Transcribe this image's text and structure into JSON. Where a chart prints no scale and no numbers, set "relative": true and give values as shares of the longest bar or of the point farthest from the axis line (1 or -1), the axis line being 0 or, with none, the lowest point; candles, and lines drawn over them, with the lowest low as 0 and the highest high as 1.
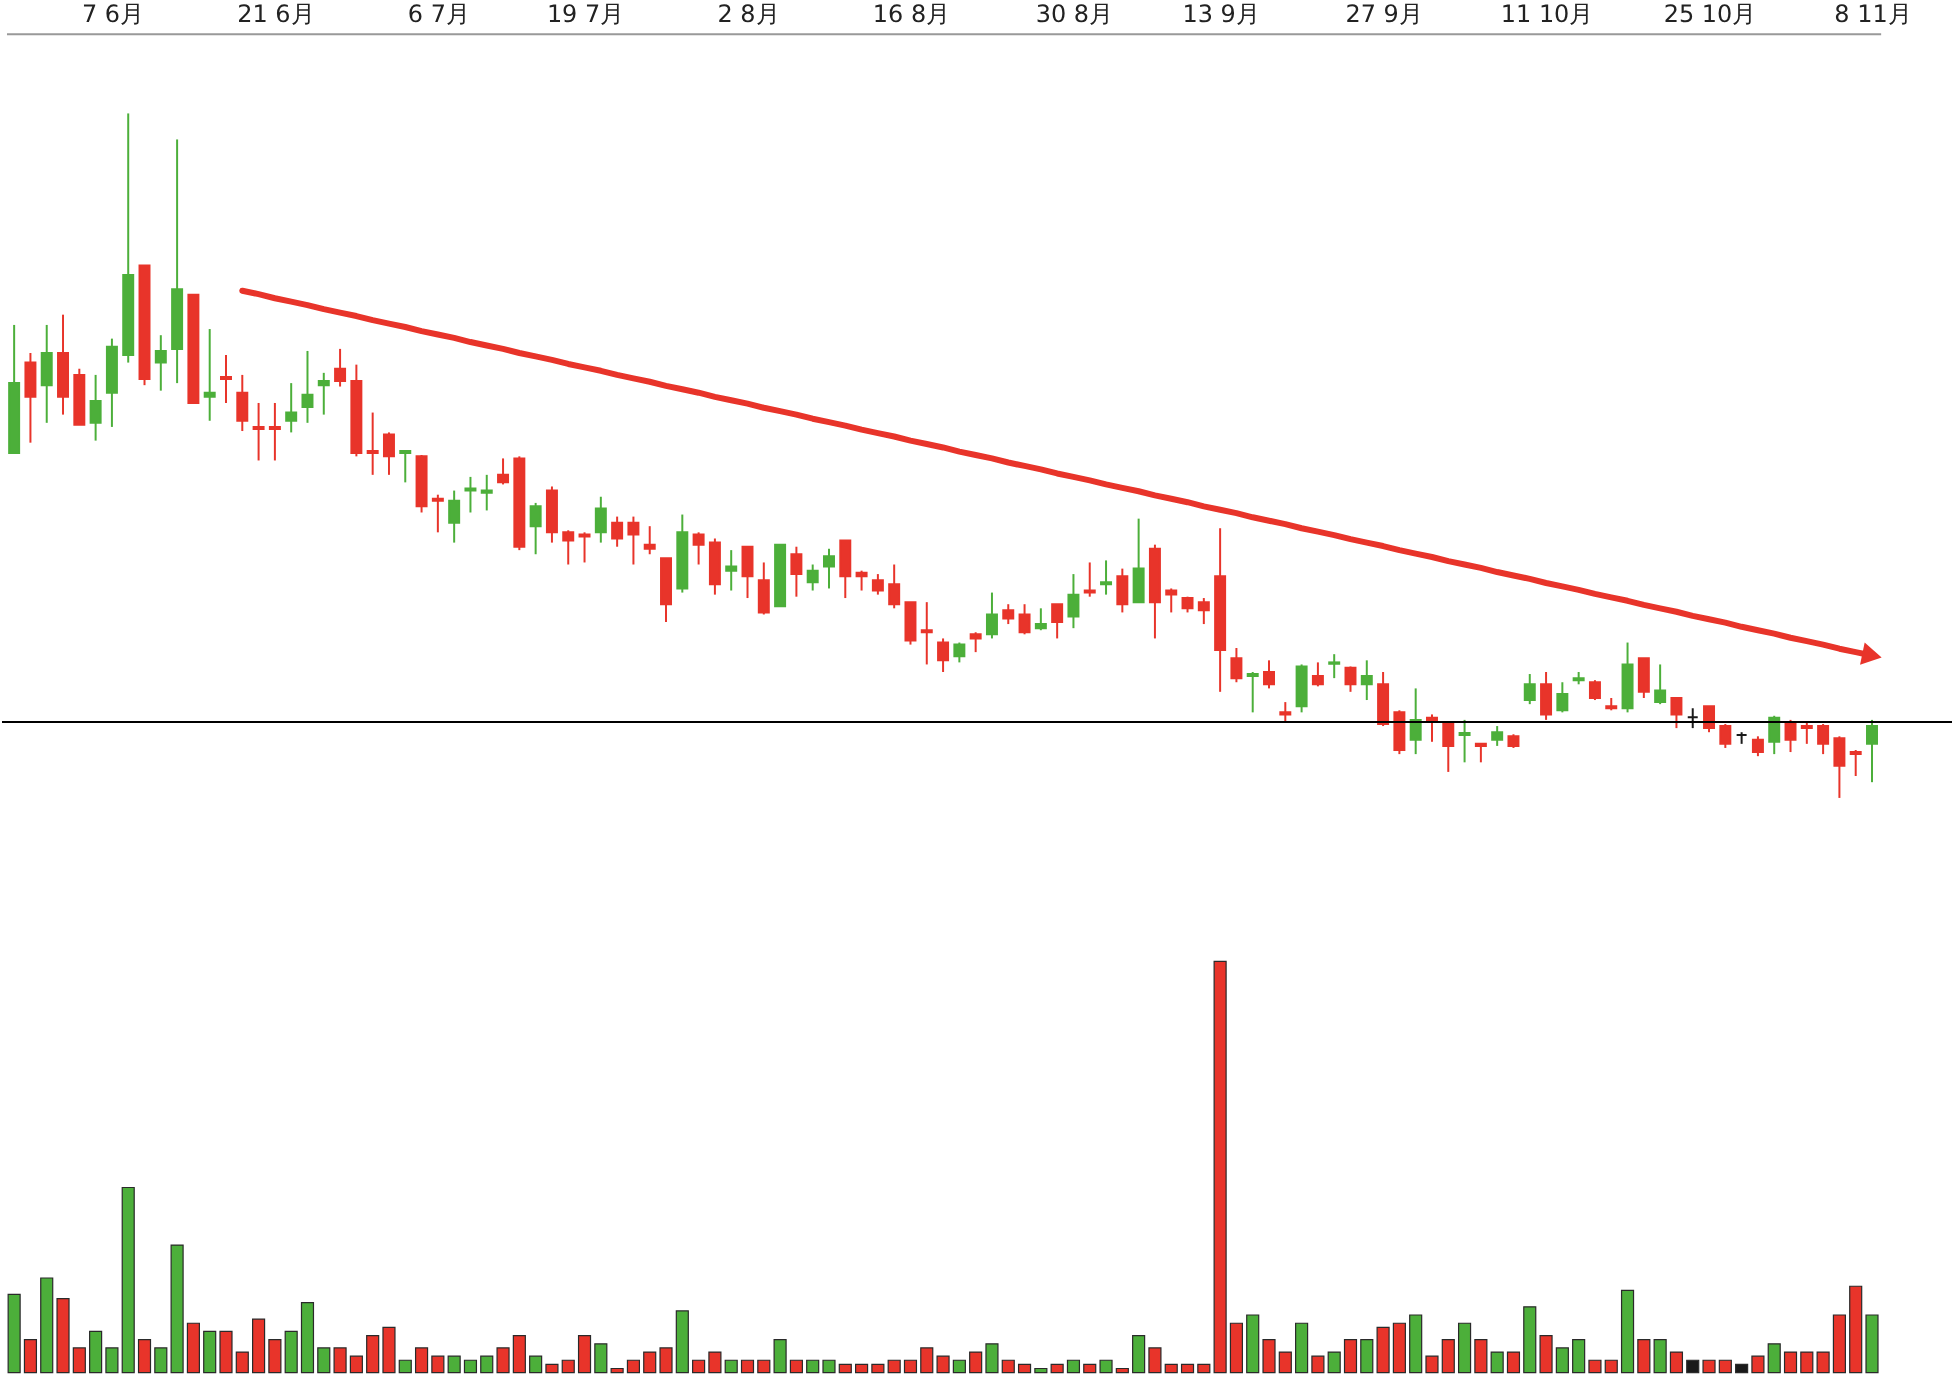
{
  "chart_data": [
    {
      "type": "candlestick",
      "relative": true,
      "grid": false,
      "tick_labels": "x",
      "categories": [
        null,
        null,
        null,
        null,
        null,
        null,
        "7 6月",
        null,
        null,
        null,
        null,
        null,
        null,
        null,
        null,
        null,
        "21 6月",
        null,
        null,
        null,
        null,
        null,
        null,
        null,
        null,
        null,
        "6 7月",
        null,
        null,
        null,
        null,
        null,
        null,
        null,
        null,
        "19 7月",
        null,
        null,
        null,
        null,
        null,
        null,
        null,
        null,
        null,
        "2 8月",
        null,
        null,
        null,
        null,
        null,
        null,
        null,
        null,
        null,
        "16 8月",
        null,
        null,
        null,
        null,
        null,
        null,
        null,
        null,
        null,
        "30 8月",
        null,
        null,
        null,
        null,
        null,
        null,
        null,
        null,
        "13 9月",
        null,
        null,
        null,
        null,
        null,
        null,
        null,
        null,
        null,
        "27 9月",
        null,
        null,
        null,
        null,
        null,
        null,
        null,
        null,
        null,
        "11 10月",
        null,
        null,
        null,
        null,
        null,
        null,
        null,
        null,
        null,
        "25 10月",
        null,
        null,
        null,
        null,
        null,
        null,
        null,
        null,
        null,
        "8 11月"
      ],
      "ohlc": [
        [
          0.504,
          0.691,
          0.504,
          0.606
        ],
        [
          0.636,
          0.65,
          0.519,
          0.586
        ],
        [
          0.603,
          0.691,
          0.548,
          0.65
        ],
        [
          0.65,
          0.706,
          0.56,
          0.586
        ],
        [
          0.618,
          0.627,
          0.545,
          0.545
        ],
        [
          0.548,
          0.618,
          0.522,
          0.58
        ],
        [
          0.592,
          0.671,
          0.542,
          0.659
        ],
        [
          0.647,
          1.0,
          0.636,
          0.764
        ],
        [
          0.778,
          0.778,
          0.603,
          0.612
        ],
        [
          0.636,
          0.676,
          0.595,
          0.653
        ],
        [
          0.656,
          0.962,
          0.606,
          0.743
        ],
        [
          0.735,
          0.735,
          0.577,
          0.577
        ],
        [
          0.586,
          0.685,
          0.551,
          0.592
        ],
        [
          0.615,
          0.647,
          0.577,
          0.612
        ],
        [
          0.592,
          0.618,
          0.536,
          0.551
        ],
        [
          0.542,
          0.577,
          0.493,
          0.539
        ],
        [
          0.542,
          0.577,
          0.493,
          0.539
        ],
        [
          0.551,
          0.606,
          0.534,
          0.563
        ],
        [
          0.571,
          0.653,
          0.548,
          0.589
        ],
        [
          0.603,
          0.621,
          0.56,
          0.609
        ],
        [
          0.627,
          0.656,
          0.601,
          0.609
        ],
        [
          0.609,
          0.633,
          0.499,
          0.504
        ],
        [
          0.507,
          0.563,
          0.472,
          0.504
        ],
        [
          0.531,
          0.534,
          0.472,
          0.499
        ],
        [
          0.504,
          0.507,
          0.461,
          0.507
        ],
        [
          0.499,
          0.501,
          0.417,
          0.426
        ],
        [
          0.437,
          0.443,
          0.388,
          0.434
        ],
        [
          0.402,
          0.449,
          0.373,
          0.434
        ],
        [
          0.449,
          0.469,
          0.417,
          0.452
        ],
        [
          0.446,
          0.472,
          0.42,
          0.449
        ],
        [
          0.472,
          0.496,
          0.458,
          0.461
        ],
        [
          0.496,
          0.499,
          0.362,
          0.367
        ],
        [
          0.397,
          0.431,
          0.356,
          0.426
        ],
        [
          0.449,
          0.455,
          0.373,
          0.388
        ],
        [
          0.388,
          0.391,
          0.341,
          0.376
        ],
        [
          0.385,
          0.388,
          0.344,
          0.382
        ],
        [
          0.388,
          0.44,
          0.373,
          0.423
        ],
        [
          0.402,
          0.411,
          0.367,
          0.379
        ],
        [
          0.402,
          0.411,
          0.341,
          0.385
        ],
        [
          0.37,
          0.397,
          0.356,
          0.364
        ],
        [
          0.35,
          0.35,
          0.257,
          0.283
        ],
        [
          0.306,
          0.414,
          0.3,
          0.388
        ],
        [
          0.385,
          0.388,
          0.341,
          0.37
        ],
        [
          0.373,
          0.379,
          0.297,
          0.312
        ],
        [
          0.332,
          0.362,
          0.303,
          0.338
        ],
        [
          0.367,
          0.367,
          0.292,
          0.324
        ],
        [
          0.318,
          0.344,
          0.268,
          0.271
        ],
        [
          0.28,
          0.37,
          0.28,
          0.37
        ],
        [
          0.356,
          0.367,
          0.294,
          0.327
        ],
        [
          0.315,
          0.341,
          0.303,
          0.332
        ],
        [
          0.338,
          0.364,
          0.306,
          0.353
        ],
        [
          0.376,
          0.376,
          0.292,
          0.324
        ],
        [
          0.329,
          0.332,
          0.303,
          0.324
        ],
        [
          0.318,
          0.327,
          0.297,
          0.303
        ],
        [
          0.312,
          0.341,
          0.277,
          0.283
        ],
        [
          0.286,
          0.286,
          0.224,
          0.23
        ],
        [
          0.245,
          0.286,
          0.195,
          0.242
        ],
        [
          0.227,
          0.233,
          0.184,
          0.201
        ],
        [
          0.207,
          0.227,
          0.198,
          0.224
        ],
        [
          0.239,
          0.242,
          0.213,
          0.233
        ],
        [
          0.239,
          0.3,
          0.233,
          0.268
        ],
        [
          0.274,
          0.283,
          0.254,
          0.262
        ],
        [
          0.268,
          0.283,
          0.239,
          0.242
        ],
        [
          0.248,
          0.277,
          0.245,
          0.254
        ],
        [
          0.283,
          0.283,
          0.233,
          0.257
        ],
        [
          0.265,
          0.327,
          0.248,
          0.297
        ],
        [
          0.303,
          0.344,
          0.294,
          0.3
        ],
        [
          0.312,
          0.347,
          0.297,
          0.315
        ],
        [
          0.324,
          0.335,
          0.271,
          0.283
        ],
        [
          0.286,
          0.408,
          0.286,
          0.335
        ],
        [
          0.364,
          0.37,
          0.233,
          0.286
        ],
        [
          0.303,
          0.306,
          0.271,
          0.297
        ],
        [
          0.292,
          0.294,
          0.271,
          0.277
        ],
        [
          0.286,
          0.292,
          0.254,
          0.274
        ],
        [
          0.324,
          0.394,
          0.155,
          0.216
        ],
        [
          0.204,
          0.219,
          0.169,
          0.175
        ],
        [
          0.178,
          0.184,
          0.125,
          0.181
        ],
        [
          0.184,
          0.201,
          0.16,
          0.166
        ],
        [
          0.125,
          0.14,
          0.111,
          0.122
        ],
        [
          0.134,
          0.195,
          0.125,
          0.192
        ],
        [
          0.178,
          0.198,
          0.163,
          0.166
        ],
        [
          0.196,
          0.21,
          0.175,
          0.198
        ],
        [
          0.19,
          0.192,
          0.155,
          0.166
        ],
        [
          0.166,
          0.201,
          0.143,
          0.178
        ],
        [
          0.166,
          0.184,
          0.105,
          0.108
        ],
        [
          0.125,
          0.128,
          0.064,
          0.07
        ],
        [
          0.085,
          0.16,
          0.064,
          0.114
        ],
        [
          0.117,
          0.122,
          0.082,
          0.114
        ],
        [
          0.108,
          0.111,
          0.038,
          0.076
        ],
        [
          0.092,
          0.114,
          0.052,
          0.095
        ],
        [
          0.079,
          0.079,
          0.052,
          0.076
        ],
        [
          0.085,
          0.105,
          0.076,
          0.096
        ],
        [
          0.09,
          0.093,
          0.073,
          0.076
        ],
        [
          0.143,
          0.181,
          0.137,
          0.166
        ],
        [
          0.166,
          0.184,
          0.114,
          0.122
        ],
        [
          0.128,
          0.169,
          0.125,
          0.152
        ],
        [
          0.172,
          0.184,
          0.166,
          0.175
        ],
        [
          0.169,
          0.172,
          0.143,
          0.146
        ],
        [
          0.134,
          0.146,
          0.128,
          0.131
        ],
        [
          0.131,
          0.227,
          0.125,
          0.195
        ],
        [
          0.204,
          0.204,
          0.146,
          0.155
        ],
        [
          0.14,
          0.195,
          0.137,
          0.157
        ],
        [
          0.146,
          0.146,
          0.102,
          0.122
        ],
        [
          0.118,
          0.131,
          0.102,
          0.118
        ],
        [
          0.134,
          0.134,
          0.096,
          0.102
        ],
        [
          0.105,
          0.108,
          0.073,
          0.079
        ],
        [
          0.092,
          0.096,
          0.079,
          0.092
        ],
        [
          0.085,
          0.09,
          0.061,
          0.067
        ],
        [
          0.082,
          0.12,
          0.064,
          0.117
        ],
        [
          0.111,
          0.114,
          0.067,
          0.085
        ],
        [
          0.105,
          0.111,
          0.079,
          0.102
        ],
        [
          0.105,
          0.108,
          0.064,
          0.079
        ],
        [
          0.087,
          0.09,
          0.0,
          0.047
        ],
        [
          0.067,
          0.07,
          0.032,
          0.064
        ],
        [
          0.079,
          0.114,
          0.023,
          0.105
        ]
      ],
      "colors": [
        "#4caf3a",
        "#e8342a",
        "#4caf3a",
        "#e8342a",
        "#e8342a",
        "#4caf3a",
        "#4caf3a",
        "#4caf3a",
        "#e8342a",
        "#4caf3a",
        "#4caf3a",
        "#e8342a",
        "#4caf3a",
        "#e8342a",
        "#e8342a",
        "#e8342a",
        "#e8342a",
        "#4caf3a",
        "#4caf3a",
        "#4caf3a",
        "#e8342a",
        "#e8342a",
        "#e8342a",
        "#e8342a",
        "#4caf3a",
        "#e8342a",
        "#e8342a",
        "#4caf3a",
        "#4caf3a",
        "#4caf3a",
        "#e8342a",
        "#e8342a",
        "#4caf3a",
        "#e8342a",
        "#e8342a",
        "#e8342a",
        "#4caf3a",
        "#e8342a",
        "#e8342a",
        "#e8342a",
        "#e8342a",
        "#4caf3a",
        "#e8342a",
        "#e8342a",
        "#4caf3a",
        "#e8342a",
        "#e8342a",
        "#4caf3a",
        "#e8342a",
        "#4caf3a",
        "#4caf3a",
        "#e8342a",
        "#e8342a",
        "#e8342a",
        "#e8342a",
        "#e8342a",
        "#e8342a",
        "#e8342a",
        "#4caf3a",
        "#e8342a",
        "#4caf3a",
        "#e8342a",
        "#e8342a",
        "#4caf3a",
        "#e8342a",
        "#4caf3a",
        "#e8342a",
        "#4caf3a",
        "#e8342a",
        "#4caf3a",
        "#e8342a",
        "#e8342a",
        "#e8342a",
        "#e8342a",
        "#e8342a",
        "#e8342a",
        "#4caf3a",
        "#e8342a",
        "#e8342a",
        "#4caf3a",
        "#e8342a",
        "#4caf3a",
        "#e8342a",
        "#4caf3a",
        "#e8342a",
        "#e8342a",
        "#4caf3a",
        "#e8342a",
        "#e8342a",
        "#4caf3a",
        "#e8342a",
        "#4caf3a",
        "#e8342a",
        "#4caf3a",
        "#e8342a",
        "#4caf3a",
        "#4caf3a",
        "#e8342a",
        "#e8342a",
        "#4caf3a",
        "#e8342a",
        "#4caf3a",
        "#e8342a",
        "#1a1a1a",
        "#e8342a",
        "#e8342a",
        "#1a1a1a",
        "#e8342a",
        "#4caf3a",
        "#e8342a",
        "#e8342a",
        "#e8342a",
        "#e8342a",
        "#e8342a",
        "#4caf3a"
      ],
      "ref_lines": [
        {
          "axis": "y",
          "value": 0.111,
          "color": "#000000"
        }
      ],
      "series": [
        {
          "type": "line",
          "color": "#e8342a",
          "values": [
            null,
            null,
            null,
            null,
            null,
            null,
            null,
            null,
            null,
            null,
            null,
            null,
            null,
            null,
            0.741,
            0.736,
            0.73,
            0.725,
            0.72,
            0.714,
            0.709,
            0.704,
            0.698,
            0.693,
            0.688,
            0.682,
            0.677,
            0.672,
            0.666,
            0.661,
            0.656,
            0.65,
            0.645,
            0.64,
            0.634,
            0.629,
            0.624,
            0.618,
            0.613,
            0.608,
            0.602,
            0.597,
            0.592,
            0.586,
            0.581,
            0.576,
            0.57,
            0.565,
            0.56,
            0.554,
            0.549,
            0.544,
            0.538,
            0.533,
            0.528,
            0.522,
            0.517,
            0.512,
            0.506,
            0.501,
            0.496,
            0.49,
            0.485,
            0.48,
            0.474,
            0.469,
            0.464,
            0.458,
            0.453,
            0.448,
            0.442,
            0.437,
            0.432,
            0.426,
            0.421,
            0.416,
            0.41,
            0.405,
            0.4,
            0.394,
            0.389,
            0.384,
            0.378,
            0.373,
            0.368,
            0.362,
            0.357,
            0.352,
            0.346,
            0.341,
            0.336,
            0.33,
            0.325,
            0.32,
            0.314,
            0.309,
            0.304,
            0.298,
            0.293,
            0.288,
            0.282,
            0.277,
            0.272,
            0.266,
            0.261,
            0.256,
            0.25,
            0.245,
            0.24,
            0.234,
            0.229,
            0.224,
            0.218,
            0.213,
            0.208
          ]
        }
      ]
    },
    {
      "type": "bar",
      "relative": true,
      "tick_labels": false,
      "categories": [
        null,
        null,
        null,
        null,
        null,
        null,
        null,
        null,
        null,
        null,
        null,
        null,
        null,
        null,
        null,
        null,
        null,
        null,
        null,
        null,
        null,
        null,
        null,
        null,
        null,
        null,
        null,
        null,
        null,
        null,
        null,
        null,
        null,
        null,
        null,
        null,
        null,
        null,
        null,
        null,
        null,
        null,
        null,
        null,
        null,
        null,
        null,
        null,
        null,
        null,
        null,
        null,
        null,
        null,
        null,
        null,
        null,
        null,
        null,
        null,
        null,
        null,
        null,
        null,
        null,
        null,
        null,
        null,
        null,
        null,
        null,
        null,
        null,
        null,
        null,
        null,
        null,
        null,
        null,
        null,
        null,
        null,
        null,
        null,
        null,
        null,
        null,
        null,
        null,
        null,
        null,
        null,
        null,
        null,
        null,
        null,
        null,
        null,
        null,
        null,
        null,
        null,
        null,
        null,
        null,
        null,
        null,
        null,
        null,
        null,
        null,
        null,
        null,
        null,
        null
      ],
      "values": [
        0.19,
        0.08,
        0.23,
        0.18,
        0.06,
        0.1,
        0.06,
        0.45,
        0.08,
        0.06,
        0.31,
        0.12,
        0.1,
        0.1,
        0.05,
        0.13,
        0.08,
        0.1,
        0.17,
        0.06,
        0.06,
        0.04,
        0.09,
        0.11,
        0.03,
        0.06,
        0.04,
        0.04,
        0.03,
        0.04,
        0.06,
        0.09,
        0.04,
        0.02,
        0.03,
        0.09,
        0.07,
        0.01,
        0.03,
        0.05,
        0.06,
        0.15,
        0.03,
        0.05,
        0.03,
        0.03,
        0.03,
        0.08,
        0.03,
        0.03,
        0.03,
        0.02,
        0.02,
        0.02,
        0.03,
        0.03,
        0.06,
        0.04,
        0.03,
        0.05,
        0.07,
        0.03,
        0.02,
        0.01,
        0.02,
        0.03,
        0.02,
        0.03,
        0.01,
        0.09,
        0.06,
        0.02,
        0.02,
        0.02,
        1,
        0.12,
        0.14,
        0.08,
        0.05,
        0.12,
        0.04,
        0.05,
        0.08,
        0.08,
        0.11,
        0.12,
        0.14,
        0.04,
        0.08,
        0.12,
        0.08,
        0.05,
        0.05,
        0.16,
        0.09,
        0.06,
        0.08,
        0.03,
        0.03,
        0.2,
        0.08,
        0.08,
        0.05,
        0.03,
        0.03,
        0.03,
        0.02,
        0.04,
        0.07,
        0.05,
        0.05,
        0.05,
        0.14,
        0.21,
        0.14
      ],
      "colors": [
        "#4caf3a",
        "#e8342a",
        "#4caf3a",
        "#e8342a",
        "#e8342a",
        "#4caf3a",
        "#4caf3a",
        "#4caf3a",
        "#e8342a",
        "#4caf3a",
        "#4caf3a",
        "#e8342a",
        "#4caf3a",
        "#e8342a",
        "#e8342a",
        "#e8342a",
        "#e8342a",
        "#4caf3a",
        "#4caf3a",
        "#4caf3a",
        "#e8342a",
        "#e8342a",
        "#e8342a",
        "#e8342a",
        "#4caf3a",
        "#e8342a",
        "#e8342a",
        "#4caf3a",
        "#4caf3a",
        "#4caf3a",
        "#e8342a",
        "#e8342a",
        "#4caf3a",
        "#e8342a",
        "#e8342a",
        "#e8342a",
        "#4caf3a",
        "#e8342a",
        "#e8342a",
        "#e8342a",
        "#e8342a",
        "#4caf3a",
        "#e8342a",
        "#e8342a",
        "#4caf3a",
        "#e8342a",
        "#e8342a",
        "#4caf3a",
        "#e8342a",
        "#4caf3a",
        "#4caf3a",
        "#e8342a",
        "#e8342a",
        "#e8342a",
        "#e8342a",
        "#e8342a",
        "#e8342a",
        "#e8342a",
        "#4caf3a",
        "#e8342a",
        "#4caf3a",
        "#e8342a",
        "#e8342a",
        "#4caf3a",
        "#e8342a",
        "#4caf3a",
        "#e8342a",
        "#4caf3a",
        "#e8342a",
        "#4caf3a",
        "#e8342a",
        "#e8342a",
        "#e8342a",
        "#e8342a",
        "#e8342a",
        "#e8342a",
        "#4caf3a",
        "#e8342a",
        "#e8342a",
        "#4caf3a",
        "#e8342a",
        "#4caf3a",
        "#e8342a",
        "#4caf3a",
        "#e8342a",
        "#e8342a",
        "#4caf3a",
        "#e8342a",
        "#e8342a",
        "#4caf3a",
        "#e8342a",
        "#4caf3a",
        "#e8342a",
        "#4caf3a",
        "#e8342a",
        "#4caf3a",
        "#4caf3a",
        "#e8342a",
        "#e8342a",
        "#4caf3a",
        "#e8342a",
        "#4caf3a",
        "#e8342a",
        "#1a1a1a",
        "#e8342a",
        "#e8342a",
        "#1a1a1a",
        "#e8342a",
        "#4caf3a",
        "#e8342a",
        "#e8342a",
        "#e8342a",
        "#e8342a",
        "#e8342a",
        "#4caf3a"
      ]
    }
  ]
}
